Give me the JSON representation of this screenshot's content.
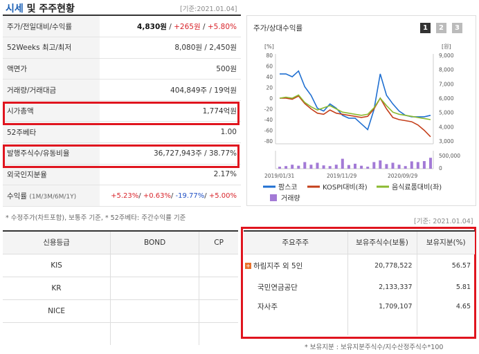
{
  "header": {
    "title_blue": "시세",
    "title_rest": "및 주주현황",
    "date": "[기준:2021.01.04]"
  },
  "price_rows": [
    {
      "label": "주가/전일대비/수익률",
      "v1": "4,830원",
      "v2": "+265원",
      "v3": "+5.80%"
    },
    {
      "label": "52Weeks 최고/최저",
      "value": "8,080원 / 2,450원"
    },
    {
      "label": "액면가",
      "value": "500원"
    },
    {
      "label": "거래량/거래대금",
      "value": "404,849주 / 19억원"
    },
    {
      "label": "시가총액",
      "value": "1,774억원"
    },
    {
      "label": "52주베타",
      "value": "1.00"
    },
    {
      "label": "발행주식수/유동비율",
      "value": "36,727,943주 / 38.77%"
    },
    {
      "label": "외국인지분율",
      "value": "2.17%"
    },
    {
      "label": "수익률",
      "sublabel": "(1M/3M/6M/1Y)",
      "r1": "+5.23%",
      "r2": "+0.63%",
      "r3": "-19.77%",
      "r4": "+5.00%"
    }
  ],
  "note1": "* 수정주가(차트포함), 보통주 기준, * 52주베타: 주간수익률 기준",
  "chart": {
    "title": "주가/상대수익률",
    "pages": [
      "1",
      "2",
      "3"
    ],
    "left_unit": "[%]",
    "right_unit": "[원]",
    "left_ticks": [
      "80",
      "60",
      "40",
      "20",
      "0",
      "-20",
      "-40",
      "-60",
      "-80"
    ],
    "right_ticks": [
      "9,000",
      "8,000",
      "7,000",
      "6,000",
      "5,000",
      "4,000",
      "3,000"
    ],
    "vol_ticks": [
      "500,000",
      "0"
    ],
    "x_labels": [
      "2019/01/31",
      "2019/11/29",
      "2020/09/29"
    ],
    "legend": [
      "팜스코",
      "KOSPI대비(좌)",
      "음식료품대비(좌)",
      "거래량"
    ],
    "colors": {
      "stock": "#1f6fd1",
      "kospi": "#c43f1a",
      "food": "#8ab92f",
      "volume": "#a37ad6"
    }
  },
  "chart_data": {
    "type": "line",
    "title": "주가/상대수익률",
    "x": [
      "2019/01",
      "2019/02",
      "2019/03",
      "2019/04",
      "2019/05",
      "2019/06",
      "2019/07",
      "2019/08",
      "2019/09",
      "2019/10",
      "2019/11",
      "2019/12",
      "2020/01",
      "2020/02",
      "2020/03",
      "2020/04",
      "2020/05",
      "2020/06",
      "2020/07",
      "2020/08",
      "2020/09",
      "2020/10",
      "2020/11",
      "2020/12",
      "2021/01"
    ],
    "series": [
      {
        "name": "팜스코",
        "axis": "right",
        "values": [
          7700,
          7700,
          7500,
          7900,
          6800,
          6200,
          5300,
          5100,
          5600,
          5300,
          4800,
          4600,
          4600,
          4200,
          3800,
          5200,
          7700,
          6200,
          5600,
          5100,
          4800,
          4700,
          4700,
          4700,
          4800
        ]
      },
      {
        "name": "KOSPI대비(좌)",
        "axis": "left",
        "values": [
          0,
          0,
          -2,
          4,
          -10,
          -20,
          -28,
          -30,
          -22,
          -28,
          -30,
          -32,
          -34,
          -36,
          -34,
          -20,
          0,
          -20,
          -36,
          -40,
          -42,
          -44,
          -50,
          -60,
          -72
        ]
      },
      {
        "name": "음식료품대비(좌)",
        "axis": "left",
        "values": [
          0,
          2,
          0,
          6,
          -8,
          -16,
          -22,
          -18,
          -14,
          -20,
          -26,
          -28,
          -30,
          -32,
          -30,
          -18,
          0,
          -14,
          -26,
          -30,
          -32,
          -34,
          -36,
          -38,
          -40
        ]
      },
      {
        "name": "거래량",
        "axis": "volume",
        "values": [
          60000,
          80000,
          120000,
          90000,
          200000,
          120000,
          180000,
          100000,
          80000,
          120000,
          300000,
          110000,
          150000,
          90000,
          60000,
          200000,
          250000,
          140000,
          180000,
          120000,
          80000,
          220000,
          200000,
          230000,
          330000
        ]
      }
    ],
    "ylim_left": [
      -80,
      80
    ],
    "ylim_right": [
      3000,
      9000
    ],
    "ylim_volume": [
      0,
      500000
    ]
  },
  "holders": {
    "date": "[기준: 2021.01.04]",
    "headers": [
      "주요주주",
      "보유주식수(보통)",
      "보유지분(%)"
    ],
    "rows": [
      {
        "name": "하림지주 외 5인",
        "shares": "20,778,522",
        "pct": "56.57"
      },
      {
        "name": "국민연금공단",
        "shares": "2,133,337",
        "pct": "5.81"
      },
      {
        "name": "자사주",
        "shares": "1,709,107",
        "pct": "4.65"
      },
      {
        "name": "",
        "shares": "",
        "pct": ""
      }
    ],
    "note": "* 보유지분 : 보유지분주식수/지수산정주식수*100"
  },
  "credit": {
    "headers": [
      "신용등급",
      "BOND",
      "CP"
    ],
    "rows": [
      [
        "KIS",
        "",
        ""
      ],
      [
        "KR",
        "",
        ""
      ],
      [
        "NICE",
        "",
        ""
      ]
    ]
  }
}
